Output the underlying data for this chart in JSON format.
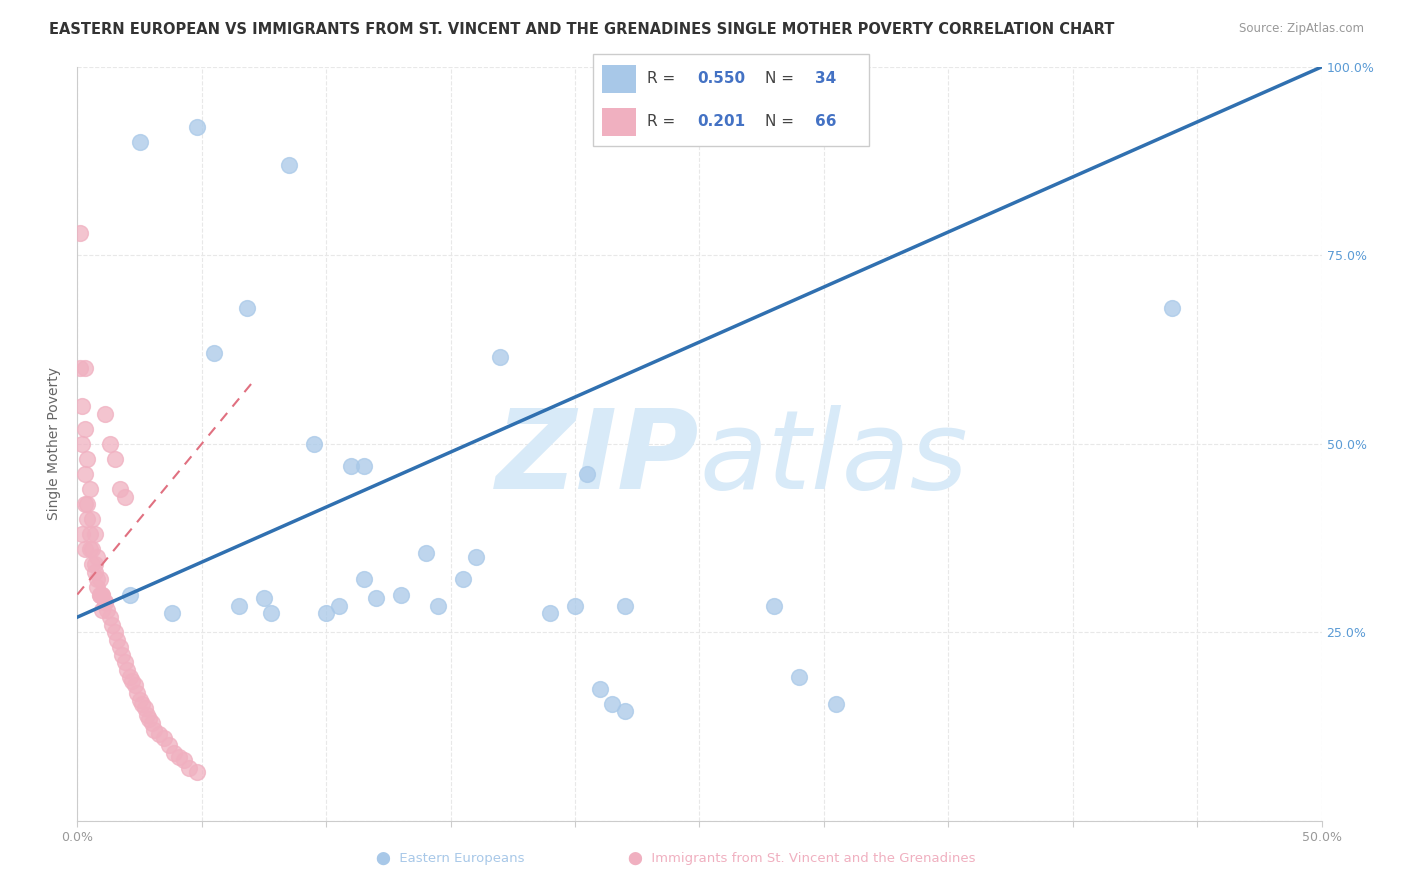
{
  "title": "EASTERN EUROPEAN VS IMMIGRANTS FROM ST. VINCENT AND THE GRENADINES SINGLE MOTHER POVERTY CORRELATION CHART",
  "source": "Source: ZipAtlas.com",
  "ylabel": "Single Mother Poverty",
  "xlim": [
    0,
    0.5
  ],
  "ylim": [
    0,
    1.0
  ],
  "xtick_positions": [
    0.0,
    0.05,
    0.1,
    0.15,
    0.2,
    0.25,
    0.3,
    0.35,
    0.4,
    0.45,
    0.5
  ],
  "xticklabels": [
    "0.0%",
    "",
    "",
    "",
    "",
    "",
    "",
    "",
    "",
    "",
    "50.0%"
  ],
  "ytick_positions": [
    0.0,
    0.25,
    0.5,
    0.75,
    1.0
  ],
  "yticklabels_right": [
    "",
    "25.0%",
    "50.0%",
    "75.0%",
    "100.0%"
  ],
  "blue_color": "#a8c8e8",
  "pink_color": "#f0b0c0",
  "trend_blue_color": "#3070b0",
  "trend_pink_color": "#e07080",
  "watermark_color": "#d8eaf8",
  "background_color": "#ffffff",
  "grid_color": "#e8e8e8",
  "title_fontsize": 10.5,
  "axis_label_fontsize": 10,
  "tick_fontsize": 9,
  "blue_scatter_x": [
    0.021,
    0.038,
    0.065,
    0.075,
    0.085,
    0.095,
    0.1,
    0.105,
    0.11,
    0.115,
    0.115,
    0.12,
    0.13,
    0.14,
    0.145,
    0.155,
    0.16,
    0.17,
    0.19,
    0.2,
    0.205,
    0.21,
    0.215,
    0.22,
    0.025,
    0.048,
    0.055,
    0.068,
    0.078,
    0.28,
    0.29,
    0.305,
    0.44,
    0.22
  ],
  "blue_scatter_y": [
    0.3,
    0.275,
    0.285,
    0.295,
    0.87,
    0.5,
    0.275,
    0.285,
    0.47,
    0.47,
    0.32,
    0.295,
    0.3,
    0.355,
    0.285,
    0.32,
    0.35,
    0.615,
    0.275,
    0.285,
    0.46,
    0.175,
    0.155,
    0.145,
    0.9,
    0.92,
    0.62,
    0.68,
    0.275,
    0.285,
    0.19,
    0.155,
    0.68,
    0.285
  ],
  "pink_scatter_x": [
    0.002,
    0.003,
    0.004,
    0.005,
    0.006,
    0.007,
    0.008,
    0.009,
    0.01,
    0.011,
    0.012,
    0.013,
    0.014,
    0.015,
    0.016,
    0.017,
    0.018,
    0.019,
    0.02,
    0.021,
    0.022,
    0.023,
    0.024,
    0.025,
    0.026,
    0.027,
    0.028,
    0.029,
    0.03,
    0.031,
    0.033,
    0.035,
    0.037,
    0.039,
    0.041,
    0.043,
    0.045,
    0.048,
    0.001,
    0.001,
    0.002,
    0.003,
    0.003,
    0.004,
    0.005,
    0.006,
    0.007,
    0.008,
    0.009,
    0.01,
    0.011,
    0.013,
    0.015,
    0.017,
    0.019,
    0.002,
    0.003,
    0.004,
    0.005,
    0.006,
    0.007,
    0.008,
    0.009,
    0.01,
    0.011,
    0.003
  ],
  "pink_scatter_y": [
    0.38,
    0.36,
    0.4,
    0.36,
    0.34,
    0.33,
    0.31,
    0.3,
    0.3,
    0.29,
    0.28,
    0.27,
    0.26,
    0.25,
    0.24,
    0.23,
    0.22,
    0.21,
    0.2,
    0.19,
    0.185,
    0.18,
    0.17,
    0.16,
    0.155,
    0.15,
    0.14,
    0.135,
    0.13,
    0.12,
    0.115,
    0.11,
    0.1,
    0.09,
    0.085,
    0.08,
    0.07,
    0.065,
    0.78,
    0.6,
    0.5,
    0.46,
    0.42,
    0.42,
    0.38,
    0.36,
    0.34,
    0.32,
    0.3,
    0.28,
    0.54,
    0.5,
    0.48,
    0.44,
    0.43,
    0.55,
    0.52,
    0.48,
    0.44,
    0.4,
    0.38,
    0.35,
    0.32,
    0.3,
    0.29,
    0.6
  ],
  "blue_trend_x0": 0.0,
  "blue_trend_y0": 0.27,
  "blue_trend_x1": 0.5,
  "blue_trend_y1": 1.0,
  "pink_trend_x0": 0.0,
  "pink_trend_y0": 0.3,
  "pink_trend_x1": 0.07,
  "pink_trend_y1": 0.58
}
